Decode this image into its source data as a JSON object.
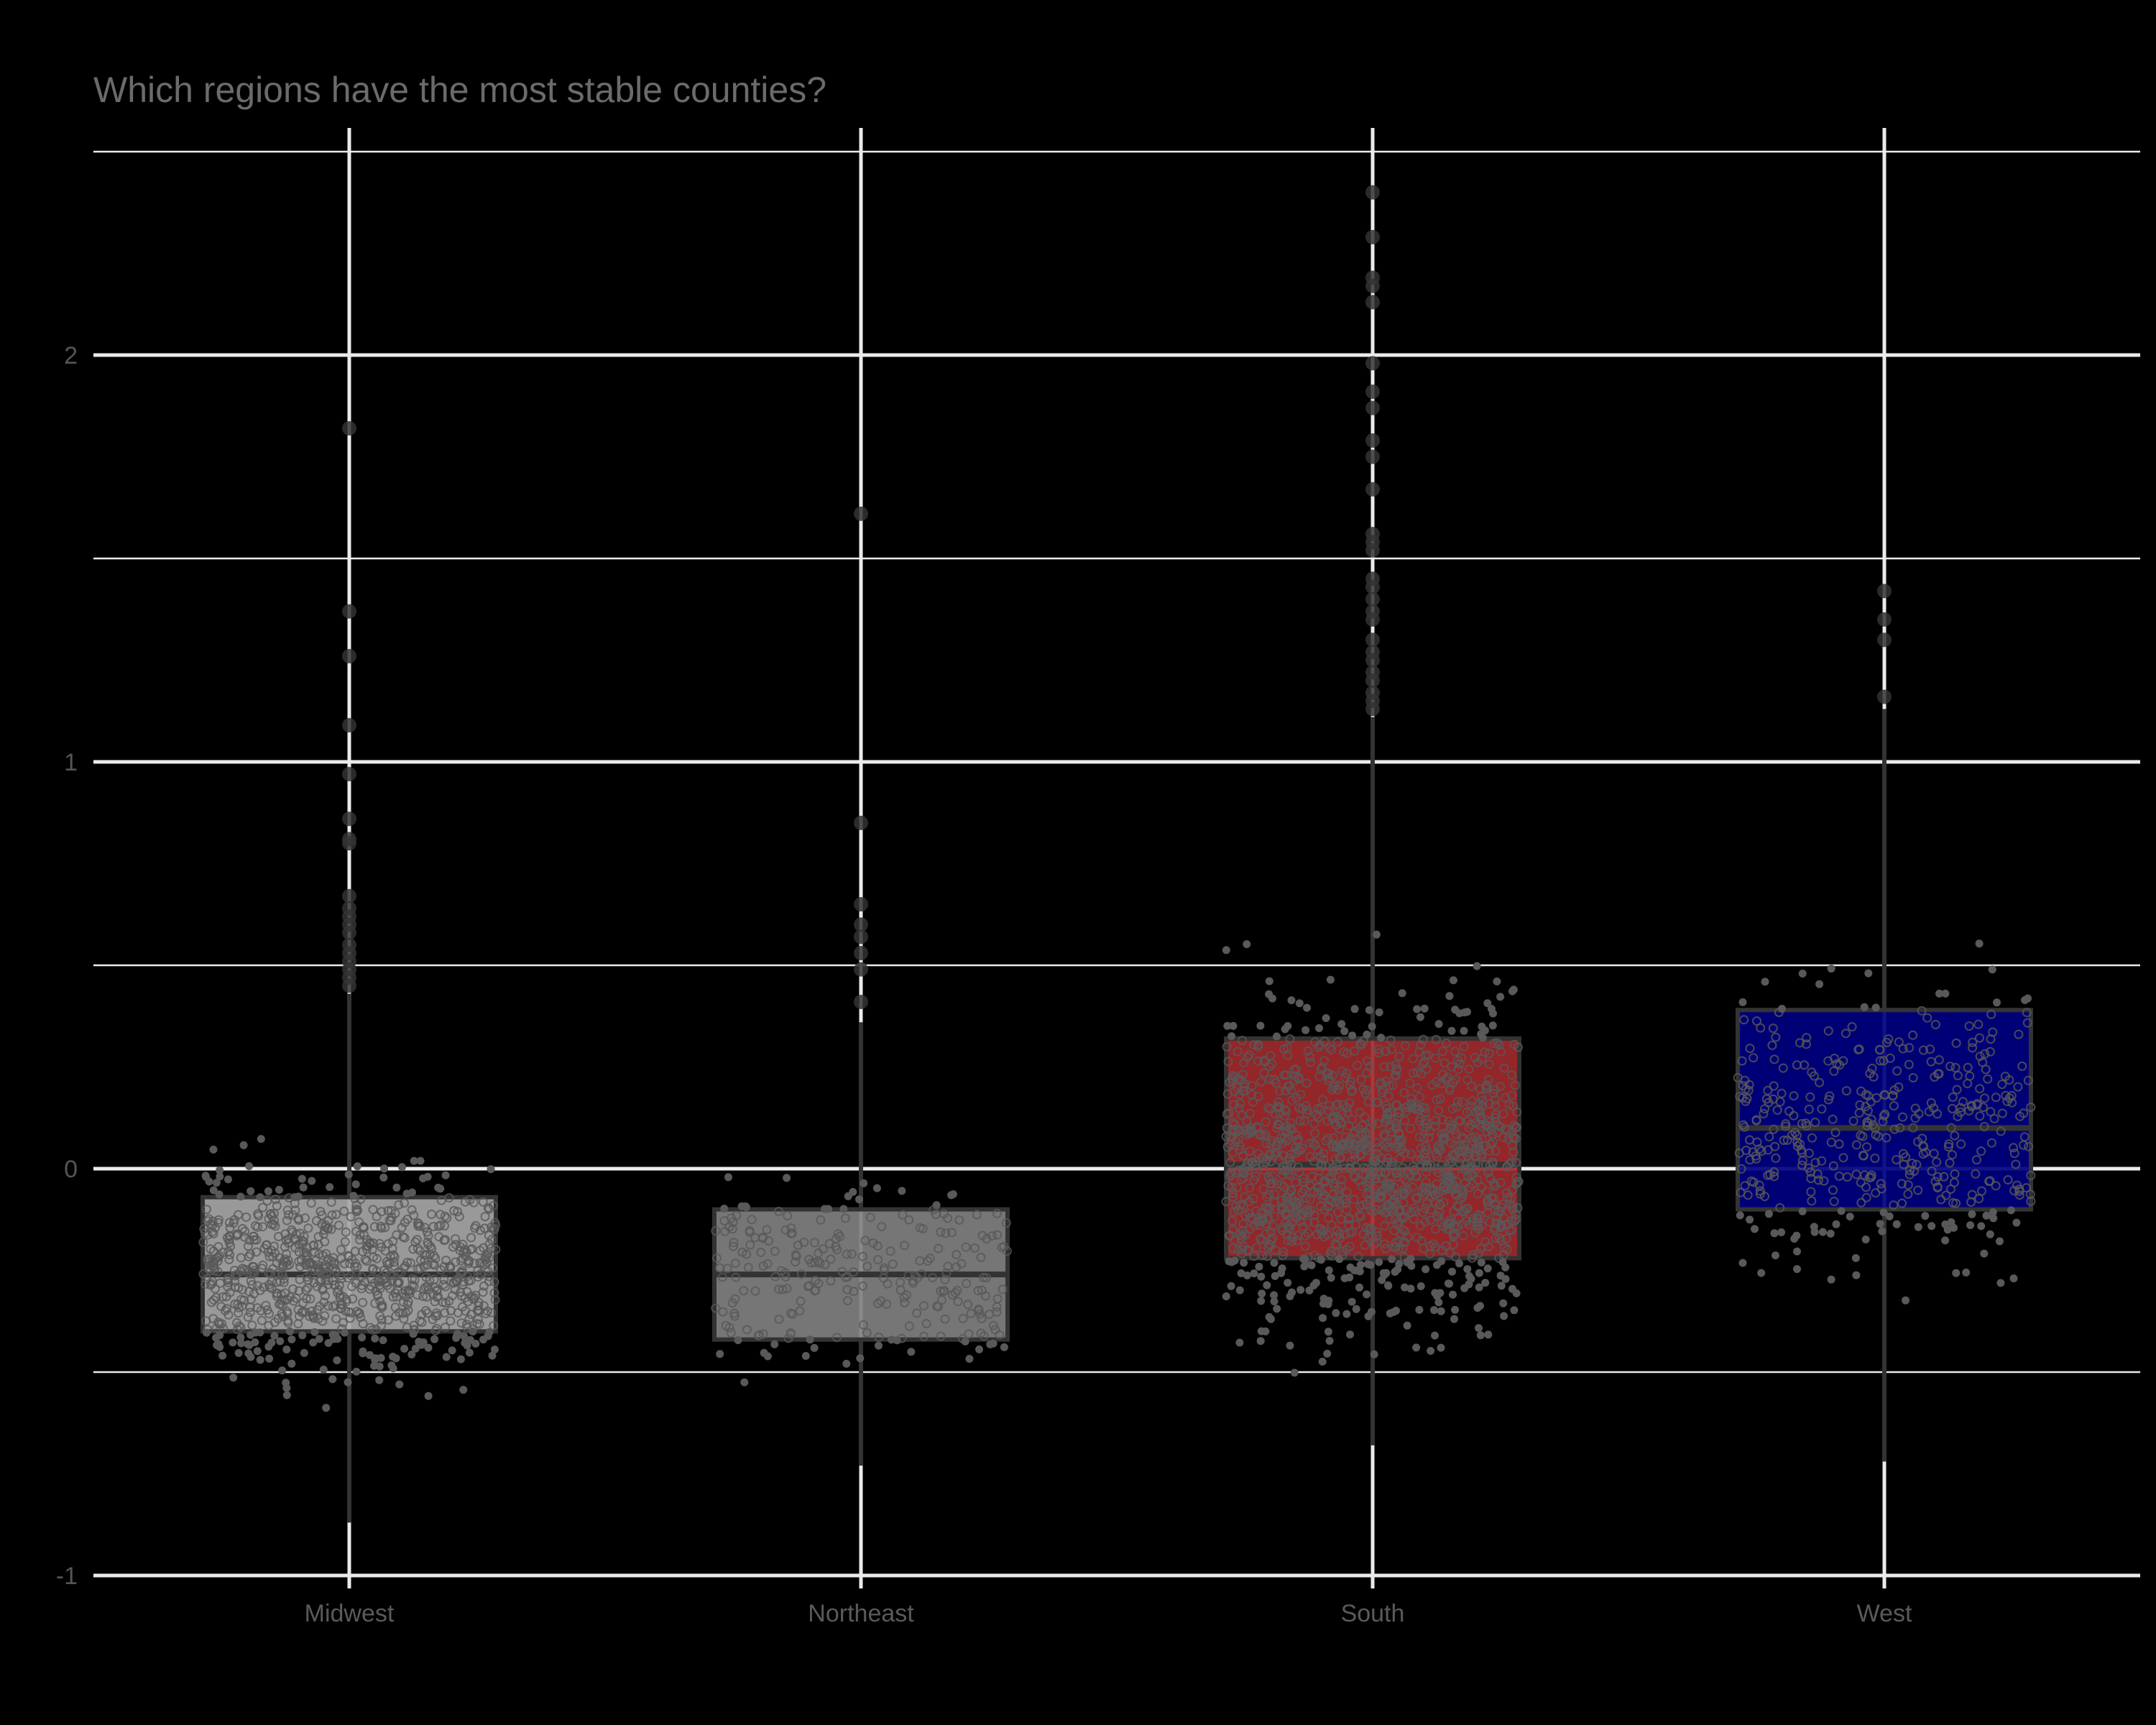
{
  "chart_data": {
    "type": "box",
    "title": "Which regions have the most stable counties?",
    "xlabel": "",
    "ylabel": "",
    "categories": [
      "Midwest",
      "Northeast",
      "South",
      "West"
    ],
    "ylim": [
      -1.0,
      2.55
    ],
    "yticks": [
      -1,
      0,
      1,
      2
    ],
    "ytick_labels": [
      "-1",
      "0",
      "1",
      "2"
    ],
    "minor_gridlines": [
      -0.5,
      0.5,
      1.5,
      2.5
    ],
    "grid": true,
    "legend": "none",
    "boxes": [
      {
        "category": "Midwest",
        "fill": "#a6a6a6",
        "q1": -0.4,
        "median": -0.26,
        "q3": -0.07,
        "whisker_low": -0.87,
        "whisker_high": 0.43,
        "outliers": [
          1.82,
          1.37,
          1.26,
          1.09,
          0.97,
          0.86,
          0.81,
          0.8,
          0.67,
          0.64,
          0.62,
          0.6,
          0.58,
          0.55,
          0.53,
          0.51,
          0.49,
          0.47,
          0.45
        ],
        "jitter_n": 900,
        "jitter_low": -0.88,
        "jitter_high": 0.38
      },
      {
        "category": "Northeast",
        "fill": "#808080",
        "q1": -0.42,
        "median": -0.26,
        "q3": -0.1,
        "whisker_low": -0.73,
        "whisker_high": 0.36,
        "outliers": [
          1.61,
          0.85,
          0.65,
          0.6,
          0.57,
          0.53,
          0.49,
          0.41
        ],
        "jitter_n": 260,
        "jitter_low": -0.72,
        "jitter_high": 0.3
      },
      {
        "category": "South",
        "fill": "#a0292c",
        "q1": -0.22,
        "median": 0.01,
        "q3": 0.32,
        "whisker_low": -0.68,
        "whisker_high": 1.11,
        "outliers": [
          2.4,
          2.29,
          2.19,
          2.17,
          2.13,
          1.98,
          1.91,
          1.87,
          1.79,
          1.75,
          1.67,
          1.56,
          1.54,
          1.52,
          1.45,
          1.43,
          1.4,
          1.37,
          1.35,
          1.3,
          1.27,
          1.25,
          1.22,
          1.2,
          1.17,
          1.15,
          1.13
        ],
        "jitter_n": 1400,
        "jitter_low": -0.68,
        "jitter_high": 1.02
      },
      {
        "category": "West",
        "fill": "#000080",
        "q1": -0.1,
        "median": 0.1,
        "q3": 0.39,
        "whisker_low": -0.72,
        "whisker_high": 1.13,
        "outliers": [
          1.42,
          1.35,
          1.3,
          1.16
        ],
        "jitter_n": 420,
        "jitter_low": -0.7,
        "jitter_high": 0.75
      }
    ]
  },
  "style": {
    "background": "#000000",
    "gridline_color": "#ebebeb",
    "box_outline": "#333333",
    "point_color": "#595959",
    "title_color": "#6b6b6b",
    "tick_label_color": "#555555"
  }
}
